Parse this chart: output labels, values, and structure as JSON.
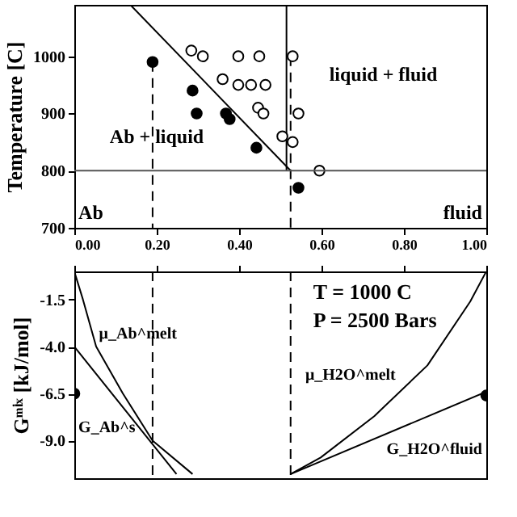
{
  "chart_data": [
    {
      "type": "scatter",
      "ylabel": "Temperature [C]",
      "xlim": [
        0,
        1
      ],
      "ylim": [
        700,
        1090
      ],
      "xticks": [
        {
          "value": 0,
          "label": "0.00"
        },
        {
          "value": 0.2,
          "label": "0.20"
        },
        {
          "value": 0.4,
          "label": "0.40"
        },
        {
          "value": 0.6,
          "label": "0.60"
        },
        {
          "value": 0.8,
          "label": "0.80"
        },
        {
          "value": 1,
          "label": "1.00"
        }
      ],
      "yticks": [
        700,
        800,
        900,
        1000
      ],
      "series": [
        {
          "type": "line",
          "color": "#000000",
          "line_style": "solid",
          "marker": "none",
          "x": [
            0.136,
            0.525
          ],
          "values": [
            1090,
            800
          ]
        },
        {
          "type": "line",
          "color": "#000000",
          "line_style": "solid",
          "marker": "none",
          "x": [
            0.515,
            0.515
          ],
          "values": [
            1090,
            800
          ]
        },
        {
          "type": "line",
          "color": "#000000",
          "line_style": "dashed",
          "marker": "none",
          "x": [
            0.19,
            0.19
          ],
          "values": [
            990,
            700
          ]
        },
        {
          "type": "line",
          "color": "#000000",
          "line_style": "dashed",
          "marker": "none",
          "x": [
            0.525,
            0.525
          ],
          "values": [
            1000,
            700
          ]
        },
        {
          "type": "scatter",
          "color": "#000000",
          "marker": "circle",
          "x": [
            0.19,
            0.287,
            0.297,
            0.368,
            0.377,
            0.442,
            0.544
          ],
          "values": [
            990,
            940,
            900,
            900,
            890,
            840,
            770
          ]
        },
        {
          "type": "scatter",
          "color": "#ffffff",
          "marker": "circle",
          "x": [
            0.284,
            0.312,
            0.398,
            0.449,
            0.53,
            0.36,
            0.398,
            0.429,
            0.464,
            0.446,
            0.459,
            0.544,
            0.505,
            0.53,
            0.595
          ],
          "values": [
            1010,
            1000,
            1000,
            1000,
            1000,
            960,
            950,
            950,
            950,
            910,
            900,
            900,
            860,
            850,
            800
          ]
        }
      ],
      "ref_lines": [
        {
          "axis": "y",
          "value": 800,
          "color": "#555555"
        }
      ],
      "annotations": [
        "liquid + fluid",
        "Ab + liquid",
        "Ab",
        "fluid"
      ]
    },
    {
      "type": "line",
      "ylabel": "Gᵐⁱˣ [kJ/mol]",
      "xlim": [
        0,
        1
      ],
      "ylim": [
        -11,
        0
      ],
      "line_style": "solid",
      "marker": "none",
      "xticks": [
        0,
        0.2,
        0.4,
        0.6,
        0.8,
        1
      ],
      "yticks": [
        -1.5,
        {
          "value": -4,
          "label": "-4.0"
        },
        -6.5,
        {
          "value": -9,
          "label": "-9.0"
        }
      ],
      "tick_labels": "y",
      "series": [
        {
          "color": "#000000",
          "x": [
            0,
            0.021,
            0.053,
            0.118,
            0.19,
            0.287
          ],
          "values": [
            0,
            -1.5,
            -4.0,
            -6.5,
            -9.0,
            -10.78
          ]
        },
        {
          "color": "#000000",
          "x": [
            0,
            0.248
          ],
          "values": [
            -4.0,
            -10.78
          ]
        },
        {
          "color": "#000000",
          "x": [
            0.525,
            0.598,
            0.728,
            0.857,
            0.961,
            1.0
          ],
          "values": [
            -10.78,
            -9.9,
            -7.7,
            -5.0,
            -1.6,
            0
          ]
        },
        {
          "color": "#000000",
          "x": [
            0.525,
            1.0
          ],
          "values": [
            -10.78,
            -6.4
          ]
        },
        {
          "type": "scatter",
          "color": "#000000",
          "marker": "circle",
          "x": [
            0,
            1.0
          ],
          "values": [
            -6.5,
            -6.6
          ]
        }
      ],
      "ref_lines": [
        {
          "axis": "x",
          "value": 0.19,
          "line_style": "dashed"
        },
        {
          "axis": "x",
          "value": 0.525,
          "line_style": "dashed"
        }
      ],
      "annotations": [
        "T = 1000 C",
        "P = 2500 Bars",
        "μ_Ab^melt",
        "G_Ab^s",
        "μ_H2O^melt",
        "G_H2O^fluid"
      ]
    }
  ]
}
